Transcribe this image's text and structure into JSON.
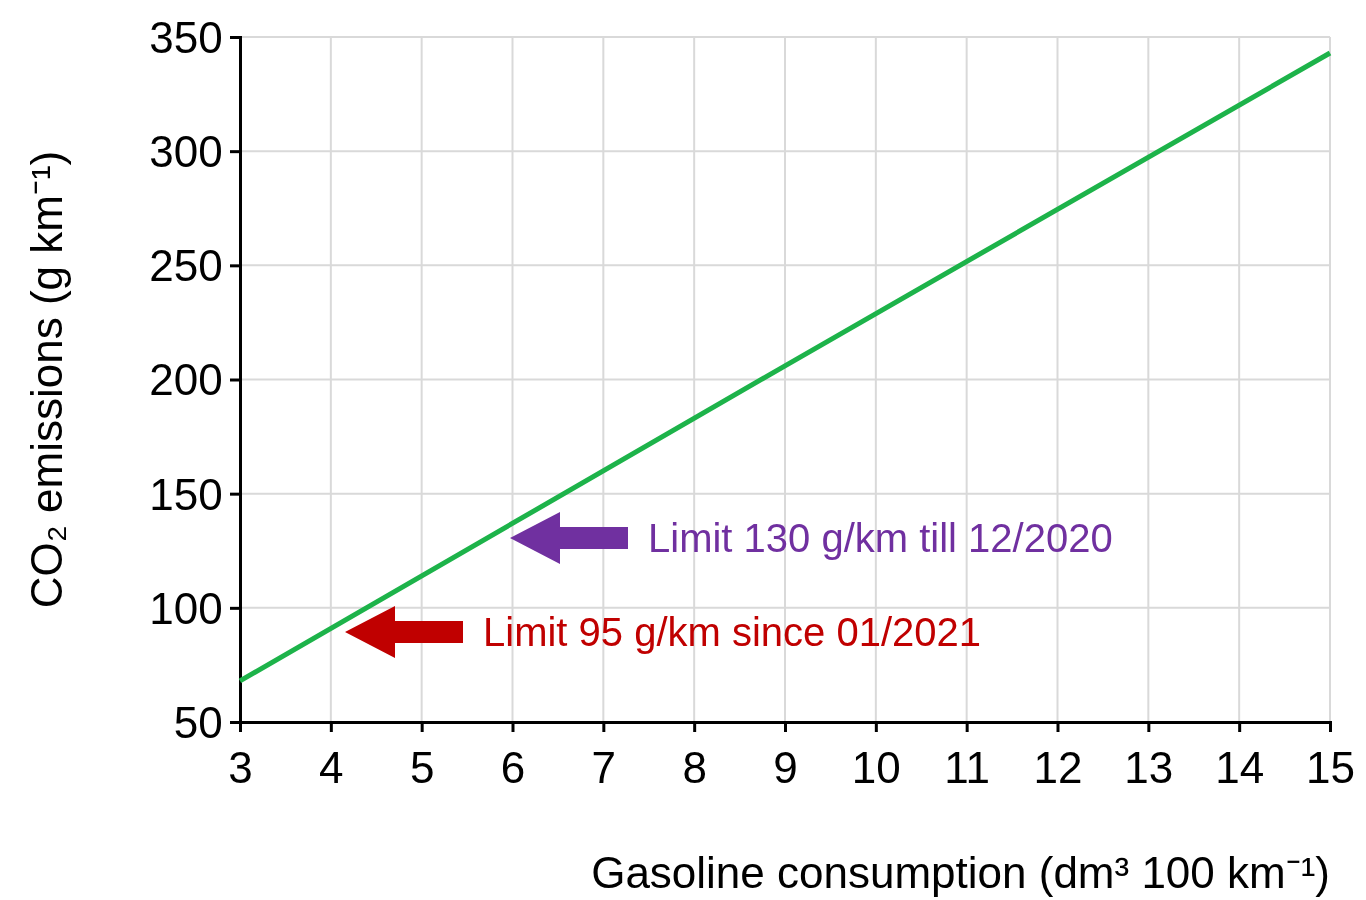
{
  "chart_data": {
    "type": "line",
    "xlabel": "Gasoline consumption (dm³ 100 km⁻¹)",
    "ylabel": "CO₂ emissions (g km⁻¹)",
    "series": [
      {
        "color": "#1db34a",
        "x": [
          3,
          9,
          15
        ],
        "values": [
          68,
          206,
          343
        ]
      }
    ],
    "xlim": [
      3,
      15
    ],
    "xticks": [
      3,
      4,
      5,
      6,
      7,
      8,
      9,
      10,
      11,
      12,
      13,
      14,
      15
    ],
    "ylim": [
      50,
      350
    ],
    "yticks": [
      50,
      100,
      150,
      200,
      250,
      300,
      350
    ],
    "grid": true,
    "marker": "none",
    "line_style": "solid",
    "annotations": [
      "Limit 130 g/km till 12/2020",
      "Limit 95 g/km since 01/2021"
    ]
  }
}
